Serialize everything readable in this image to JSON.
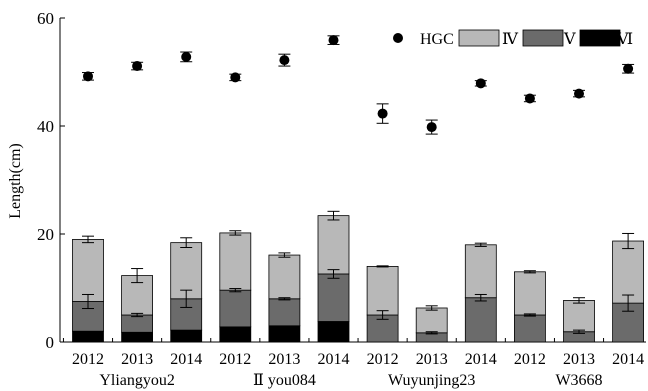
{
  "chart_data": {
    "type": "bar",
    "subtype": "stacked bar with scatter overlay",
    "ylabel": "Length(cm)",
    "xlabel": "",
    "ylim": [
      0,
      60
    ],
    "yticks": [
      0,
      20,
      40,
      60
    ],
    "grid": false,
    "legend_position": "top-right",
    "categories": [
      "2012",
      "2013",
      "2014",
      "2012",
      "2013",
      "2014",
      "2012",
      "2013",
      "2014",
      "2012",
      "2013",
      "2014"
    ],
    "groups": [
      {
        "label": "Yliangyou2",
        "span": [
          0,
          2
        ]
      },
      {
        "label": "Ⅱ you084",
        "span": [
          3,
          5
        ]
      },
      {
        "label": "Wuyunjing23",
        "span": [
          6,
          8
        ]
      },
      {
        "label": "W3668",
        "span": [
          9,
          11
        ]
      }
    ],
    "series": [
      {
        "name": "Ⅵ",
        "kind": "bar",
        "color": "#000000",
        "values": [
          2.0,
          1.8,
          2.2,
          2.8,
          3.0,
          3.8,
          0,
          0,
          0,
          0,
          0,
          0
        ]
      },
      {
        "name": "Ⅴ",
        "kind": "bar",
        "color": "#6b6b6b",
        "values": [
          5.5,
          3.2,
          5.8,
          6.8,
          5.0,
          8.8,
          5.0,
          1.7,
          8.2,
          5.0,
          1.9,
          7.2
        ],
        "error": [
          1.3,
          0.3,
          1.6,
          0.3,
          0.2,
          0.8,
          0.8,
          0.2,
          0.6,
          0.2,
          0.3,
          1.5
        ]
      },
      {
        "name": "Ⅳ",
        "kind": "bar",
        "color": "#b8b8b8",
        "values": [
          11.5,
          7.3,
          10.4,
          10.6,
          8.1,
          10.8,
          9.0,
          4.6,
          9.8,
          8.0,
          5.8,
          11.5
        ],
        "error": [
          0.6,
          1.3,
          0.9,
          0.4,
          0.4,
          0.8,
          0.1,
          0.4,
          0.3,
          0.2,
          0.5,
          1.4
        ]
      },
      {
        "name": "HGC",
        "kind": "scatter",
        "marker": "circle",
        "color": "#000000",
        "values": [
          49.2,
          51.1,
          52.8,
          49.0,
          52.2,
          55.9,
          42.3,
          39.8,
          47.9,
          45.1,
          46.0,
          50.6
        ],
        "error": [
          0.7,
          0.7,
          0.9,
          0.6,
          1.1,
          0.8,
          1.8,
          1.3,
          0.5,
          0.6,
          0.6,
          0.8
        ]
      }
    ]
  }
}
